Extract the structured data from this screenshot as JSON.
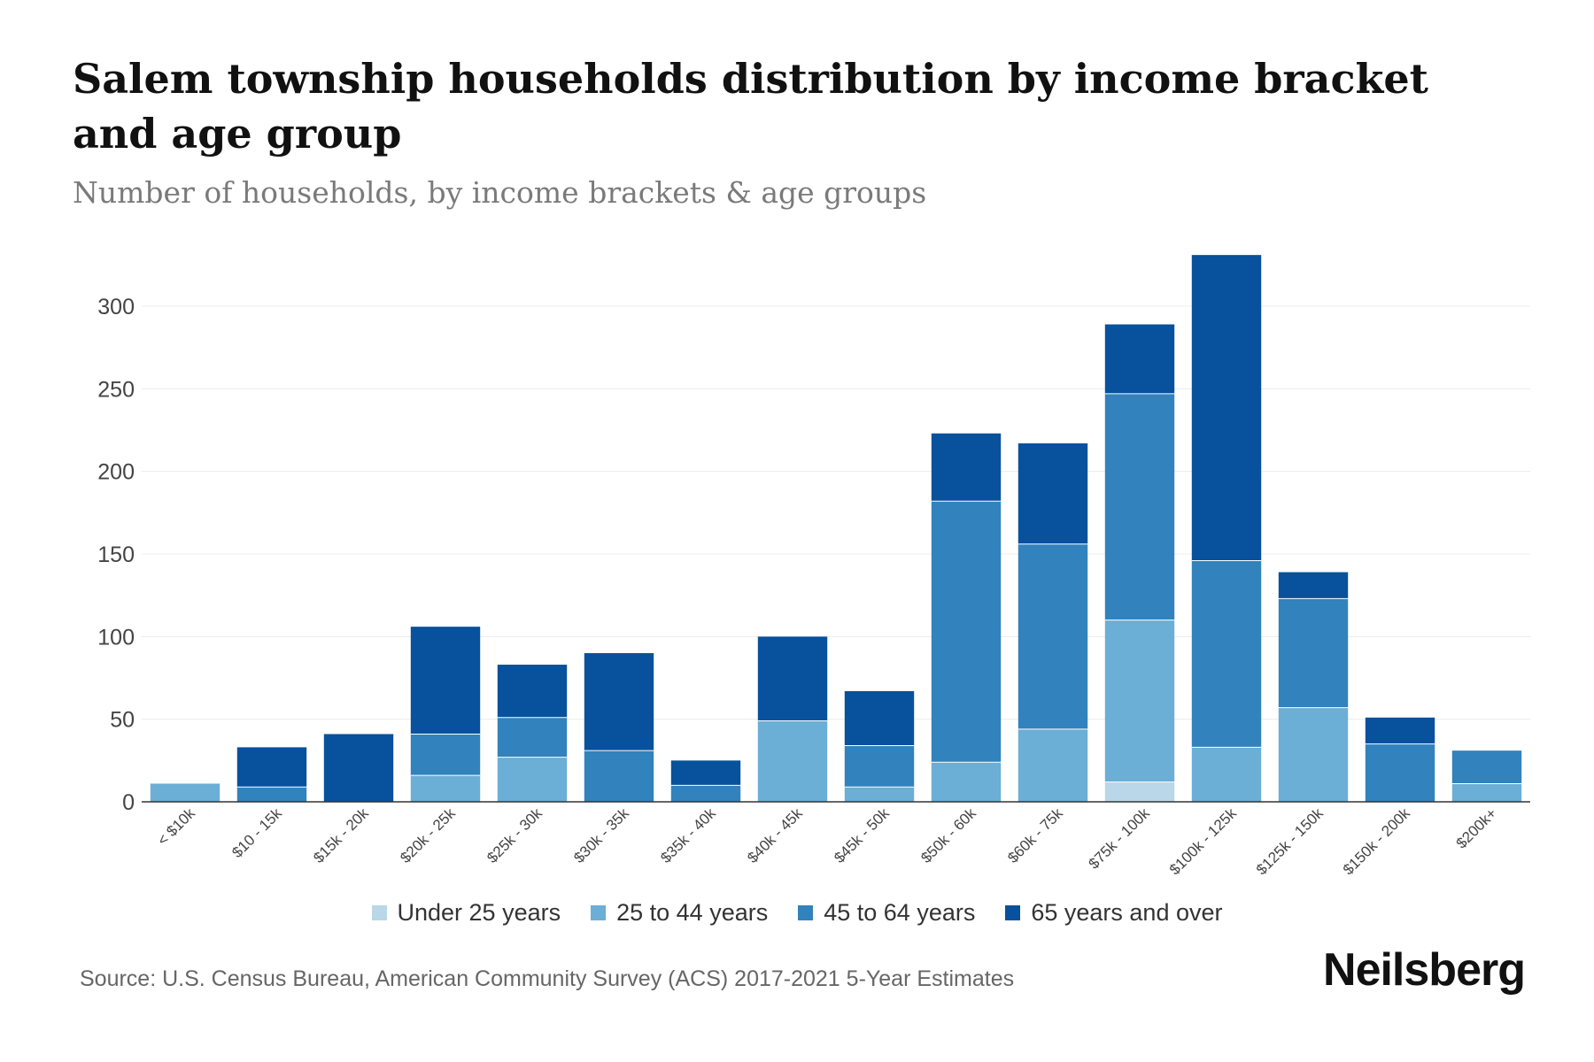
{
  "header": {
    "title": "Salem township households distribution by income bracket and age group",
    "subtitle": "Number of households, by income brackets & age groups"
  },
  "footer": {
    "source": "Source: U.S. Census Bureau, American Community Survey (ACS) 2017-2021 5-Year Estimates",
    "brand": "Neilsberg"
  },
  "chart_data": {
    "type": "bar",
    "stacked": true,
    "title": "Salem township households distribution by income bracket and age group",
    "subtitle": "Number of households, by income brackets & age groups",
    "xlabel": "",
    "ylabel": "",
    "ylim": [
      0,
      330
    ],
    "yticks": [
      0,
      50,
      100,
      150,
      200,
      250,
      300
    ],
    "grid": true,
    "legend_position": "bottom",
    "categories": [
      "< $10k",
      "$10 - 15k",
      "$15k - 20k",
      "$20k - 25k",
      "$25k - 30k",
      "$30k - 35k",
      "$35k - 40k",
      "$40k - 45k",
      "$45k - 50k",
      "$50k - 60k",
      "$60k - 75k",
      "$75k - 100k",
      "$100k - 125k",
      "$125k - 150k",
      "$150k - 200k",
      "$200k+"
    ],
    "series": [
      {
        "name": "Under 25 years",
        "color": "#b9d7e8",
        "values": [
          0,
          0,
          0,
          0,
          0,
          0,
          0,
          0,
          0,
          0,
          0,
          12,
          0,
          0,
          0,
          0
        ]
      },
      {
        "name": "25 to 44 years",
        "color": "#6baed6",
        "values": [
          11,
          0,
          0,
          16,
          27,
          0,
          0,
          49,
          9,
          24,
          44,
          98,
          33,
          57,
          0,
          11
        ]
      },
      {
        "name": "45 to 64 years",
        "color": "#3182bd",
        "values": [
          0,
          9,
          0,
          25,
          24,
          31,
          10,
          0,
          25,
          158,
          112,
          137,
          113,
          66,
          35,
          20
        ]
      },
      {
        "name": "65 years and over",
        "color": "#08519c",
        "values": [
          0,
          24,
          41,
          65,
          32,
          59,
          15,
          51,
          33,
          41,
          61,
          42,
          185,
          16,
          16,
          0
        ]
      }
    ]
  }
}
